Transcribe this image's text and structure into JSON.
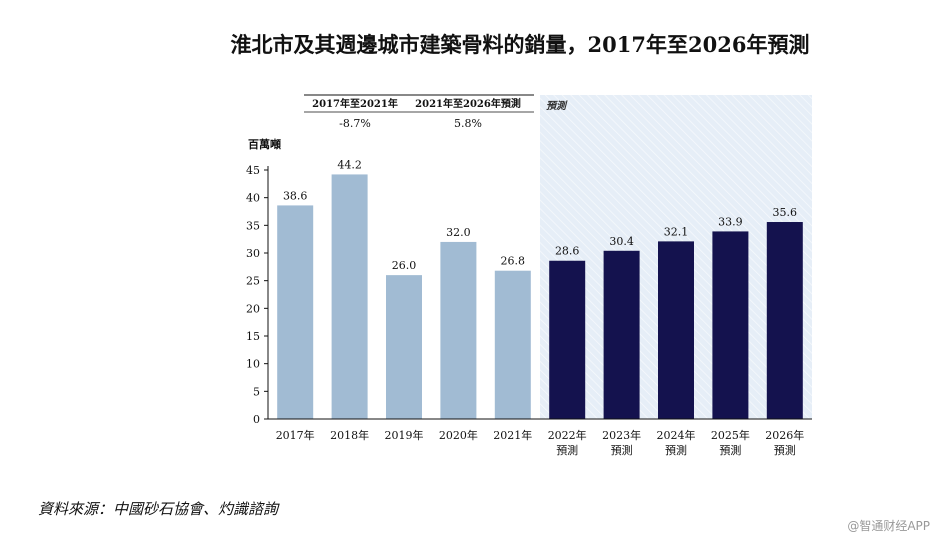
{
  "chart_data": {
    "type": "bar",
    "title": "淮北市及其週邊城市建築骨料的銷量，2017年至2026年預測",
    "ylabel": "百萬噸",
    "ylim": [
      0,
      45
    ],
    "yticks": [
      0,
      5,
      10,
      15,
      20,
      25,
      30,
      35,
      40,
      45
    ],
    "categories": [
      {
        "year": "2017年",
        "sub": ""
      },
      {
        "year": "2018年",
        "sub": ""
      },
      {
        "year": "2019年",
        "sub": ""
      },
      {
        "year": "2020年",
        "sub": ""
      },
      {
        "year": "2021年",
        "sub": ""
      },
      {
        "year": "2022年",
        "sub": "預測"
      },
      {
        "year": "2023年",
        "sub": "預測"
      },
      {
        "year": "2024年",
        "sub": "預測"
      },
      {
        "year": "2025年",
        "sub": "預測"
      },
      {
        "year": "2026年",
        "sub": "預測"
      }
    ],
    "values": [
      38.6,
      44.2,
      26.0,
      32.0,
      26.8,
      28.6,
      30.4,
      32.1,
      33.9,
      35.6
    ],
    "value_labels": [
      "38.6",
      "44.2",
      "26.0",
      "32.0",
      "26.8",
      "28.6",
      "30.4",
      "32.1",
      "33.9",
      "35.6"
    ],
    "forecast_start_index": 5,
    "forecast_label": "預測",
    "cagr": [
      {
        "period": "2017年至2021年",
        "value": "-8.7%"
      },
      {
        "period": "2021年至2026年預測",
        "value": "5.8%"
      }
    ],
    "colors": {
      "historical": "#a1bbd3",
      "forecast": "#14124e",
      "forecast_bg": "#e6eef7"
    }
  },
  "source": "資料來源：中國砂石協會、灼識諮詢",
  "watermark": "@智通财经APP"
}
